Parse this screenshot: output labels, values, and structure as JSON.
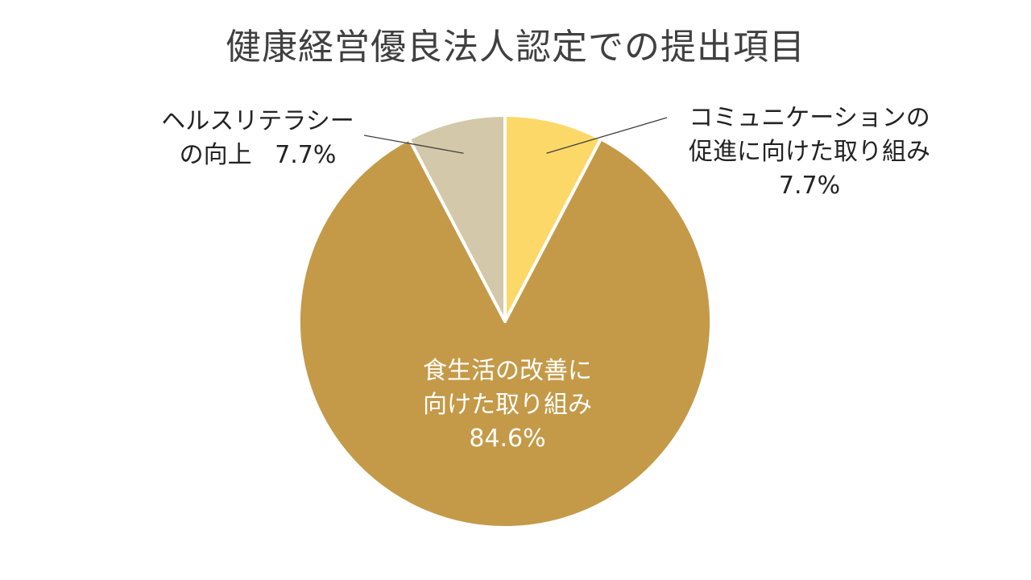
{
  "chart_data": {
    "type": "pie",
    "title": "健康経営優良法人認定での提出項目",
    "start_angle_deg": 0,
    "direction": "clockwise",
    "slices": [
      {
        "line1": "コミュニケーションの",
        "line2": "促進に向けた取り組み",
        "pct_label": "7.7%",
        "value": 7.7,
        "color": "#FCD868"
      },
      {
        "line1": "食生活の改善に",
        "line2": "向けた取り組み",
        "pct_label": "84.6%",
        "value": 84.6,
        "color": "#C49A48"
      },
      {
        "line1": "ヘルスリテラシー",
        "line2": "の向上",
        "pct_label": "7.7%",
        "value": 7.7,
        "color": "#D3C8A9"
      }
    ]
  }
}
